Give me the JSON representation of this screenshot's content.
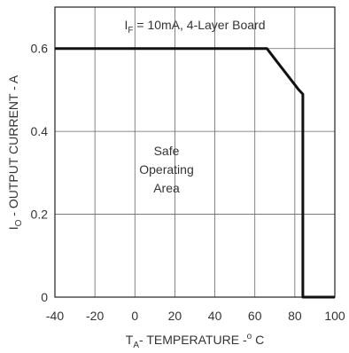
{
  "chart_data": {
    "type": "line",
    "annotation_title": {
      "prefix": "I",
      "subscript": "F",
      "rest": " = 10mA, 4-Layer Board"
    },
    "xlabel": {
      "prefix": "T",
      "subscript": "A",
      "rest": "- TEMPERATURE -",
      "degree": "o",
      "unit": " C"
    },
    "ylabel": {
      "prefix": "I",
      "subscript": "O",
      "rest": " - OUTPUT CURRENT - A"
    },
    "x_ticks": [
      "-40",
      "-20",
      "0",
      "20",
      "40",
      "60",
      "80",
      "100"
    ],
    "y_ticks": [
      "0",
      "0.2",
      "0.4",
      "0.6"
    ],
    "xlim": [
      -40,
      100
    ],
    "ylim": [
      0,
      0.7
    ],
    "grid": true,
    "region_label": [
      "Safe",
      "Operating",
      "Area"
    ],
    "series": [
      {
        "x": [
          -40,
          66,
          70,
          74,
          78,
          82,
          84,
          84,
          100
        ],
        "y": [
          0.6,
          0.6,
          0.575,
          0.55,
          0.525,
          0.5,
          0.49,
          0,
          0
        ]
      }
    ]
  }
}
